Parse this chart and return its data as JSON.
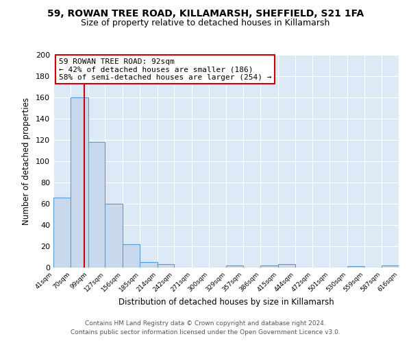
{
  "title1": "59, ROWAN TREE ROAD, KILLAMARSH, SHEFFIELD, S21 1FA",
  "title2": "Size of property relative to detached houses in Killamarsh",
  "xlabel": "Distribution of detached houses by size in Killamarsh",
  "ylabel": "Number of detached properties",
  "bar_edges": [
    41,
    70,
    99,
    127,
    156,
    185,
    214,
    242,
    271,
    300,
    329,
    357,
    386,
    415,
    444,
    472,
    501,
    530,
    559,
    587,
    616
  ],
  "bar_heights": [
    66,
    160,
    118,
    60,
    22,
    5,
    3,
    0,
    0,
    0,
    2,
    0,
    2,
    3,
    0,
    0,
    0,
    1,
    0,
    2
  ],
  "bar_color": "#c9d9ed",
  "bar_edge_color": "#5b9bd5",
  "vline_color": "#cc0000",
  "vline_x": 92,
  "annotation_title": "59 ROWAN TREE ROAD: 92sqm",
  "annotation_line1": "← 42% of detached houses are smaller (186)",
  "annotation_line2": "58% of semi-detached houses are larger (254) →",
  "annotation_box_color": "#ffffff",
  "annotation_box_edge": "#cc0000",
  "ylim": [
    0,
    200
  ],
  "yticks": [
    0,
    20,
    40,
    60,
    80,
    100,
    120,
    140,
    160,
    180,
    200
  ],
  "tick_labels": [
    "41sqm",
    "70sqm",
    "99sqm",
    "127sqm",
    "156sqm",
    "185sqm",
    "214sqm",
    "242sqm",
    "271sqm",
    "300sqm",
    "329sqm",
    "357sqm",
    "386sqm",
    "415sqm",
    "444sqm",
    "472sqm",
    "501sqm",
    "530sqm",
    "559sqm",
    "587sqm",
    "616sqm"
  ],
  "footer1": "Contains HM Land Registry data © Crown copyright and database right 2024.",
  "footer2": "Contains public sector information licensed under the Open Government Licence v3.0.",
  "plot_bg_color": "#dce9f7",
  "fig_bg_color": "#ffffff",
  "grid_color": "#ffffff",
  "title1_fontsize": 10,
  "title2_fontsize": 9,
  "footer_fontsize": 6.5
}
